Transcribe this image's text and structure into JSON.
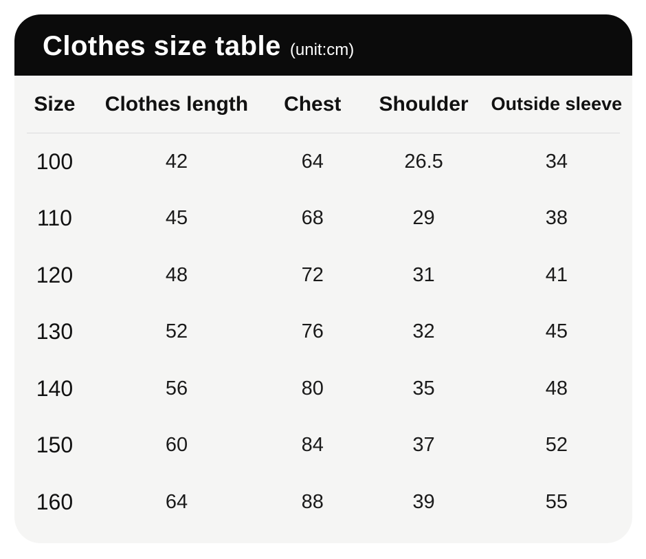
{
  "header": {
    "title": "Clothes size table",
    "unit_label": "(unit:cm)"
  },
  "colors": {
    "header_bg": "#0b0b0b",
    "header_text": "#ffffff",
    "card_bg": "#f5f5f4",
    "body_text": "#1a1a1a",
    "divider": "#dcdcdc",
    "page_bg": "#ffffff"
  },
  "chart_data": {
    "type": "table",
    "title": "Clothes size table",
    "unit_label": "(unit:cm)",
    "unit": "cm",
    "columns": [
      "Size",
      "Clothes length",
      "Chest",
      "Shoulder",
      "Outside sleeve"
    ],
    "rows": [
      [
        "100",
        "42",
        "64",
        "26.5",
        "34"
      ],
      [
        "110",
        "45",
        "68",
        "29",
        "38"
      ],
      [
        "120",
        "48",
        "72",
        "31",
        "41"
      ],
      [
        "130",
        "52",
        "76",
        "32",
        "45"
      ],
      [
        "140",
        "56",
        "80",
        "35",
        "48"
      ],
      [
        "150",
        "60",
        "84",
        "37",
        "52"
      ],
      [
        "160",
        "64",
        "88",
        "39",
        "55"
      ]
    ]
  }
}
